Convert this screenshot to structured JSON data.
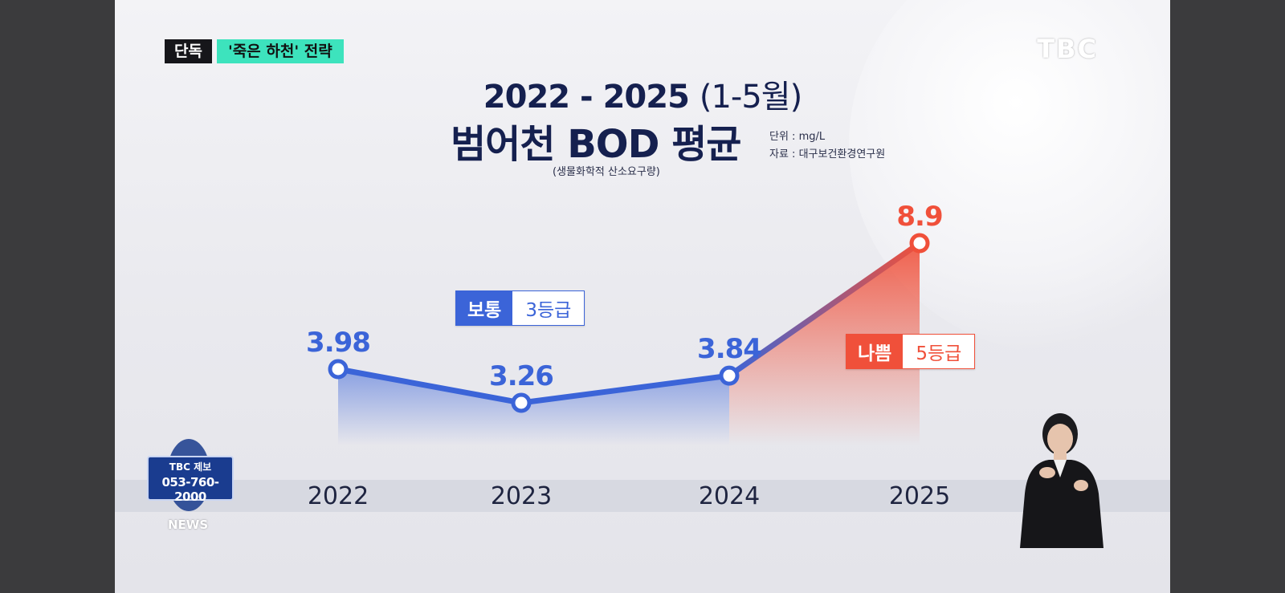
{
  "header": {
    "tag_exclusive": "단독",
    "tag_topic": "'죽은 하천' 전략",
    "broadcaster_logo": "TBC"
  },
  "title": {
    "line1": "2022 - 2025",
    "line1_paren": "(1-5월)",
    "line2": "범어천 BOD 평균",
    "subnote": "(생물화학적 산소요구량)",
    "unit": "단위 : mg/L",
    "source": "자료 : 대구보건환경연구원"
  },
  "badges": {
    "normal": {
      "label": "보통",
      "grade": "3등급"
    },
    "bad": {
      "label": "나쁨",
      "grade": "5등급"
    }
  },
  "chart_data": {
    "type": "line",
    "title": "범어천 BOD 평균",
    "x": [
      "2022",
      "2023",
      "2024",
      "2025"
    ],
    "values": [
      3.98,
      3.26,
      3.84,
      8.9
    ],
    "value_labels": [
      "3.98",
      "3.26",
      "3.84",
      "8.9"
    ],
    "ylabel": "",
    "unit": "mg/L",
    "colors": {
      "normal": "#3b64d8",
      "bad": "#f0503a"
    }
  },
  "overlay": {
    "tip_logo": "TBC 제보",
    "tip_phone": "053-760-2000",
    "news_label": "NEWS"
  },
  "icons": {
    "signer": "sign-language-interpreter-icon"
  }
}
